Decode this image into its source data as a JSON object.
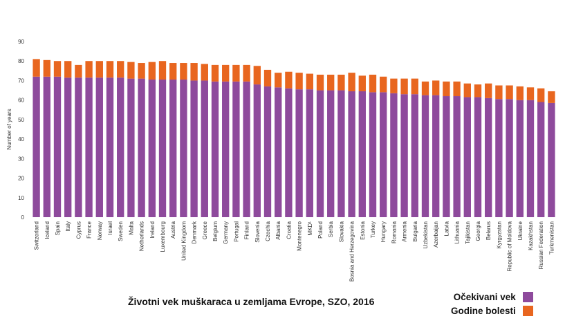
{
  "chart_data": {
    "type": "bar",
    "stacked": true,
    "ylabel": "Number of years",
    "ylim": [
      0,
      90
    ],
    "yticks": [
      0,
      10,
      20,
      30,
      40,
      50,
      60,
      70,
      80,
      90
    ],
    "grid": false,
    "categories": [
      "Switzerland",
      "Iceland",
      "Spain",
      "Italy",
      "Cyprus",
      "France",
      "Norway",
      "Israel",
      "Sweden",
      "Malta",
      "Netherlands",
      "Ireland",
      "Luxembourg",
      "Austria",
      "United Kingdom",
      "Denmark",
      "Greece",
      "Belgium",
      "Germany",
      "Portugal",
      "Finland",
      "Slovenia",
      "Czechia",
      "Albania",
      "Croatia",
      "Montenegro",
      "MKD¹",
      "Poland",
      "Serbia",
      "Slovakia",
      "Bosnia and Herzegovina",
      "Estonia",
      "Turkey",
      "Hungary",
      "Romania",
      "Armenia",
      "Bulgaria",
      "Uzbekistan",
      "Azerbaijan",
      "Latvia",
      "Lithuania",
      "Tajikistan",
      "Georgia",
      "Belarus",
      "Kyrgyzstan",
      "Republic of Moldova",
      "Ukraine",
      "Kazakhstan",
      "Russian Federation",
      "Turkmenistan"
    ],
    "series": [
      {
        "name": "Očekivani vek",
        "color": "#8e4a9c",
        "values": [
          72,
          72,
          72,
          71.5,
          71.5,
          71.5,
          71.5,
          71.5,
          71.5,
          71,
          71,
          70.5,
          70.5,
          70.5,
          70.5,
          70,
          70,
          69.5,
          69.5,
          69.5,
          69.5,
          68,
          67,
          66.5,
          66,
          65.5,
          65.5,
          65,
          65,
          65,
          64.5,
          64.5,
          64,
          64,
          63.5,
          63,
          63,
          62.5,
          62.5,
          62,
          62,
          61.5,
          61.5,
          61,
          60.5,
          60.5,
          60,
          60,
          59,
          58.5
        ]
      },
      {
        "name": "Godine bolesti",
        "color": "#e8661f",
        "values": [
          9,
          8.5,
          8,
          8.5,
          6.5,
          8.5,
          8.5,
          8.5,
          8.5,
          8.5,
          8,
          9,
          9.5,
          8.5,
          8.5,
          9,
          8.5,
          8.5,
          8.5,
          8.5,
          8.5,
          9.5,
          8.5,
          7.5,
          8.5,
          8.5,
          8,
          8,
          8,
          8,
          9.5,
          8,
          9,
          8,
          7.5,
          8,
          8,
          7,
          7.5,
          7.5,
          7.5,
          7,
          6.5,
          7.5,
          7,
          7,
          7,
          6.5,
          7,
          6
        ]
      }
    ],
    "legend_position": "bottom-right",
    "caption": "Životni vek muškaraca u zemljama Evrope, SZO, 2016"
  }
}
